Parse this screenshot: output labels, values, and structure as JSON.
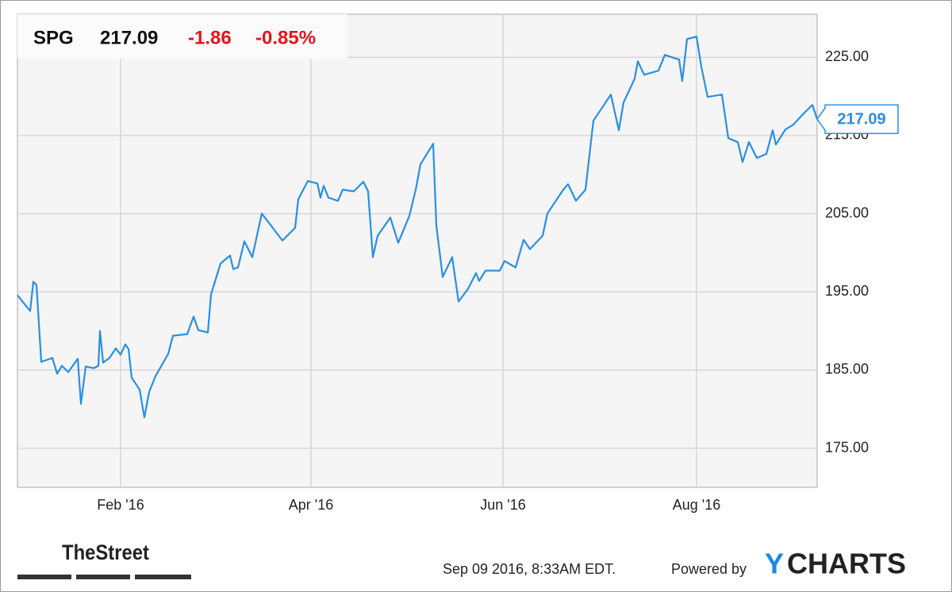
{
  "chart_data": {
    "type": "line",
    "header": {
      "ticker": "SPG",
      "price": "217.09",
      "change": "-1.86",
      "change_pct": "-0.85%"
    },
    "x": [
      0,
      4,
      5,
      6,
      7.5,
      11,
      12.5,
      14,
      16,
      19,
      20,
      21.5,
      24,
      25.5,
      26,
      27,
      29,
      31,
      32.5,
      34,
      35,
      36,
      38.5,
      40,
      41.5,
      43.5,
      47.5,
      49,
      53.5,
      55.5,
      57,
      60,
      61,
      64,
      67,
      68,
      69.5,
      71.5,
      74,
      77,
      83.5,
      87.5,
      88.5,
      91.5,
      94.5,
      95.5,
      96.5,
      98,
      101,
      102.5,
      106,
      109,
      110.5,
      112,
      113.5,
      117.5,
      120,
      123.5,
      125.5,
      127,
      131,
      132,
      134,
      137,
      139,
      142,
      144.5,
      145.5,
      147.5,
      152,
      153.5,
      157,
      159.5,
      161.5,
      165.5,
      167,
      169.5,
      172,
      173.5,
      176,
      179,
      181.5,
      187,
      189.5,
      191,
      194.5,
      195.5,
      197.5,
      202,
      204,
      208.5,
      209.5,
      211,
      214,
      215.5,
      217.5,
      222,
      224,
      227,
      228.5,
      230.5,
      233,
      236,
      238,
      239,
      242,
      244.5,
      247.5,
      250.5,
      252
    ],
    "values": [
      194.57,
      192.55,
      196.3,
      195.89,
      186.05,
      186.56,
      184.53,
      185.55,
      184.74,
      186.46,
      180.68,
      185.45,
      185.24,
      185.55,
      190.01,
      185.95,
      186.56,
      187.78,
      186.97,
      188.29,
      187.68,
      184.03,
      182.51,
      178.96,
      182.2,
      184.23,
      187.07,
      189.4,
      189.6,
      191.84,
      190.11,
      189.81,
      194.68,
      198.63,
      199.65,
      197.92,
      198.12,
      201.47,
      199.44,
      205.02,
      201.57,
      203.19,
      206.85,
      209.18,
      208.87,
      207.05,
      208.57,
      207.05,
      206.64,
      208.06,
      207.86,
      209.08,
      207.86,
      199.44,
      202.18,
      204.51,
      201.27,
      204.72,
      208.06,
      211.31,
      213.95,
      203.5,
      196.91,
      199.44,
      193.76,
      195.39,
      197.41,
      196.4,
      197.72,
      197.72,
      198.94,
      198.12,
      201.67,
      200.46,
      202.18,
      205.02,
      206.54,
      208.06,
      208.77,
      206.64,
      208.06,
      216.89,
      220.23,
      215.67,
      219.22,
      222.26,
      224.49,
      222.77,
      223.28,
      225.3,
      224.7,
      221.96,
      227.33,
      227.64,
      223.78,
      219.93,
      220.23,
      214.66,
      214.15,
      211.61,
      214.15,
      212.12,
      212.63,
      215.67,
      213.84,
      215.77,
      216.38,
      217.7,
      218.91,
      217.09
    ],
    "color": "#2a8fe4",
    "xlim": [
      0,
      252
    ],
    "xticks": [
      {
        "value": 32.5,
        "label": "Feb '16"
      },
      {
        "value": 92.5,
        "label": "Apr '16"
      },
      {
        "value": 153,
        "label": "Jun '16"
      },
      {
        "value": 214,
        "label": "Aug '16"
      }
    ],
    "ylim": [
      170,
      230.5
    ],
    "yticks": [
      {
        "value": 175,
        "label": "175.00"
      },
      {
        "value": 185,
        "label": "185.00"
      },
      {
        "value": 195,
        "label": "195.00"
      },
      {
        "value": 205,
        "label": "205.00"
      },
      {
        "value": 215,
        "label": "215.00"
      },
      {
        "value": 225,
        "label": "225.00"
      }
    ],
    "grid": true,
    "footer": {
      "source_logo": "TheStreet",
      "timestamp": "Sep 09 2016, 8:33AM EDT.",
      "powered_by": "Powered by",
      "brand": [
        "Y",
        "CHARTS"
      ]
    }
  }
}
